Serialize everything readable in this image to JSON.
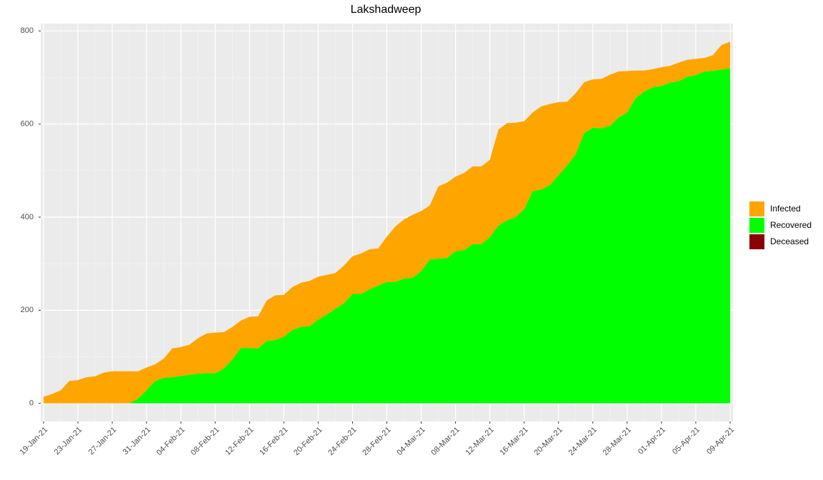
{
  "chart_data": {
    "type": "stacked_area",
    "title": "Lakshadweep",
    "categories": [
      "19-Jan-21",
      null,
      null,
      null,
      "23-Jan-21",
      null,
      null,
      null,
      "27-Jan-21",
      null,
      null,
      null,
      "31-Jan-21",
      null,
      null,
      null,
      "04-Feb-21",
      null,
      null,
      null,
      "08-Feb-21",
      null,
      null,
      null,
      "12-Feb-21",
      null,
      null,
      null,
      "16-Feb-21",
      null,
      null,
      null,
      "20-Feb-21",
      null,
      null,
      null,
      "24-Feb-21",
      null,
      null,
      null,
      "28-Feb-21",
      null,
      null,
      null,
      "04-Mar-21",
      null,
      null,
      null,
      "08-Mar-21",
      null,
      null,
      null,
      "12-Mar-21",
      null,
      null,
      null,
      "16-Mar-21",
      null,
      null,
      null,
      "20-Mar-21",
      null,
      null,
      null,
      "24-Mar-21",
      null,
      null,
      null,
      "28-Mar-21",
      null,
      null,
      null,
      "01-Apr-21",
      null,
      null,
      null,
      "05-Apr-21",
      null,
      null,
      null,
      "09-Apr-21"
    ],
    "series": [
      {
        "name": "Infected",
        "color": "#ffa500",
        "values": [
          14,
          20,
          28,
          48,
          50,
          56,
          58,
          66,
          69,
          69,
          69,
          59,
          49,
          36,
          41,
          62,
          62,
          65,
          76,
          85,
          87,
          78,
          70,
          59,
          67,
          69,
          87,
          96,
          90,
          92,
          95,
          97,
          92,
          85,
          77,
          81,
          81,
          87,
          86,
          80,
          97,
          119,
          127,
          135,
          129,
          116,
          155,
          162,
          160,
          166,
          167,
          167,
          166,
          206,
          209,
          203,
          189,
          169,
          179,
          174,
          157,
          137,
          131,
          109,
          104,
          106,
          110,
          99,
          89,
          59,
          45,
          39,
          40,
          36,
          40,
          36,
          35,
          29,
          34,
          53,
          57
        ]
      },
      {
        "name": "Recovered",
        "color": "#00ff00",
        "values": [
          0,
          0,
          0,
          0,
          0,
          0,
          0,
          0,
          0,
          0,
          0,
          10,
          28,
          48,
          55,
          56,
          59,
          61,
          64,
          65,
          65,
          75,
          94,
          119,
          119,
          118,
          134,
          136,
          143,
          158,
          164,
          166,
          180,
          191,
          203,
          215,
          235,
          235,
          245,
          253,
          261,
          261,
          268,
          270,
          284,
          309,
          311,
          312,
          327,
          329,
          342,
          342,
          357,
          382,
          393,
          400,
          417,
          456,
          459,
          469,
          490,
          511,
          535,
          581,
          592,
          591,
          596,
          614,
          625,
          656,
          670,
          679,
          682,
          689,
          692,
          702,
          705,
          713,
          714,
          717,
          720
        ]
      },
      {
        "name": "Deceased",
        "color": "#8b0000",
        "values": [
          0,
          0,
          0,
          0,
          0,
          0,
          0,
          0,
          0,
          0,
          0,
          0,
          0,
          0,
          0,
          0,
          0,
          0,
          0,
          0,
          0,
          0,
          0,
          0,
          0,
          0,
          0,
          0,
          0,
          0,
          0,
          0,
          0,
          0,
          0,
          0,
          0,
          0,
          0,
          0,
          0,
          0,
          0,
          0,
          0,
          0,
          0,
          0,
          0,
          0,
          0,
          0,
          0,
          0,
          0,
          0,
          0,
          0,
          0,
          0,
          0,
          0,
          0,
          0,
          0,
          0,
          0,
          0,
          0,
          0,
          0,
          0,
          0,
          0,
          0,
          0,
          0,
          0,
          0,
          0,
          0
        ]
      }
    ],
    "ylim": [
      -38.85,
      815.85
    ],
    "yticks": [
      0,
      200,
      400,
      600,
      800
    ],
    "grid": true,
    "legend": "right"
  }
}
